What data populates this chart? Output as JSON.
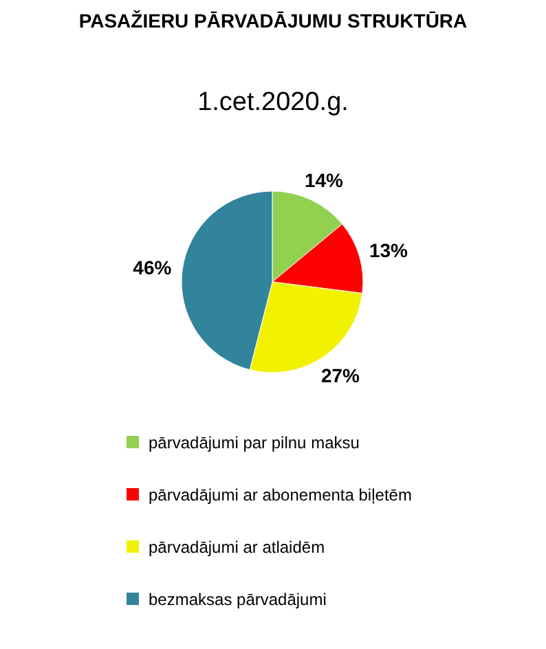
{
  "chart_data": {
    "type": "pie",
    "title": "PASAŽIERU PĀRVADĀJUMU STRUKTŪRA",
    "subtitle": "1.cet.2020.g.",
    "categories": [
      "pārvadājumi par pilnu maksu",
      "pārvadājumi ar abonementa biļetēm",
      "pārvadājumi ar atlaidēm",
      "bezmaksas pārvadājumi"
    ],
    "values": [
      14,
      13,
      27,
      46
    ],
    "value_labels": [
      "14%",
      "13%",
      "27%",
      "46%"
    ],
    "colors": [
      "#92d050",
      "#ff0000",
      "#f2f200",
      "#31849b"
    ],
    "legend": "bottom"
  }
}
